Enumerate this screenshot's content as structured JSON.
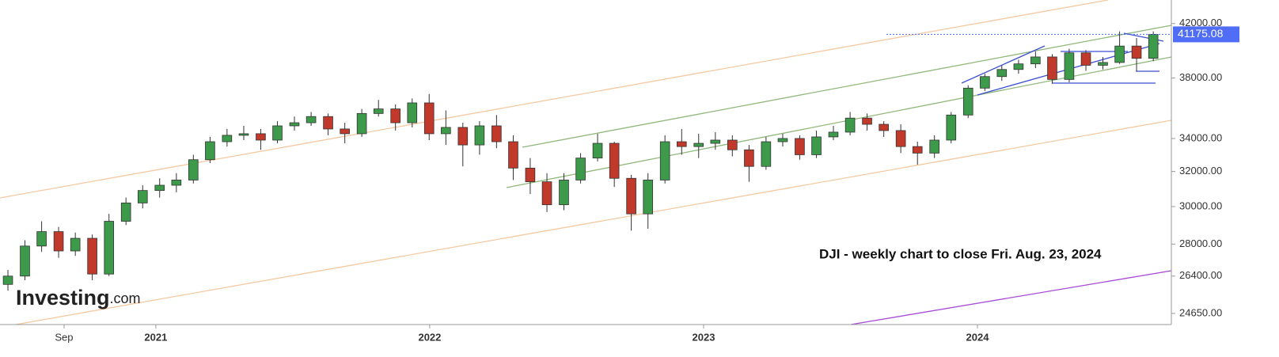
{
  "chart_data": {
    "type": "candlestick",
    "annotation": "DJI - weekly chart to close Fri. Aug. 23, 2024",
    "brand": "Investing",
    "brand_suffix": ".com",
    "log_scale": true,
    "up_color": "#3c9a4a",
    "down_color": "#c0392b",
    "last_color": "#4f6df5",
    "xlim": [
      2020.431,
      2024.708
    ],
    "xticks": [
      {
        "value": 2020.665,
        "label": "Sep"
      },
      {
        "value": 2021,
        "label": "2021"
      },
      {
        "value": 2022,
        "label": "2022"
      },
      {
        "value": 2023,
        "label": "2023"
      },
      {
        "value": 2024,
        "label": "2024"
      }
    ],
    "ylim": [
      24150,
      43860
    ],
    "yticks": [
      {
        "value": 24650,
        "label": "24650.00"
      },
      {
        "value": 26400,
        "label": "26400.00"
      },
      {
        "value": 28000,
        "label": "28000.00"
      },
      {
        "value": 30000,
        "label": "30000.00"
      },
      {
        "value": 32000,
        "label": "32000.00"
      },
      {
        "value": 34000,
        "label": "34000.00"
      },
      {
        "value": 38000,
        "label": "38000.00"
      },
      {
        "value": 42000,
        "label": "42000.00"
      }
    ],
    "x": [
      2020.46,
      2020.522,
      2020.583,
      2020.645,
      2020.706,
      2020.768,
      2020.829,
      2020.891,
      2020.952,
      2021.014,
      2021.075,
      2021.137,
      2021.198,
      2021.26,
      2021.321,
      2021.383,
      2021.444,
      2021.506,
      2021.567,
      2021.629,
      2021.69,
      2021.752,
      2021.813,
      2021.875,
      2021.936,
      2021.998,
      2022.059,
      2022.121,
      2022.182,
      2022.244,
      2022.305,
      2022.367,
      2022.428,
      2022.49,
      2022.551,
      2022.613,
      2022.674,
      2022.736,
      2022.797,
      2022.859,
      2022.92,
      2022.982,
      2023.043,
      2023.105,
      2023.166,
      2023.228,
      2023.289,
      2023.351,
      2023.412,
      2023.474,
      2023.535,
      2023.597,
      2023.658,
      2023.72,
      2023.781,
      2023.843,
      2023.904,
      2023.966,
      2024.027,
      2024.089,
      2024.15,
      2024.212,
      2024.273,
      2024.335,
      2024.396,
      2024.458,
      2024.519,
      2024.581,
      2024.642
    ],
    "open": [
      26000,
      26400,
      27900,
      28650,
      27650,
      28300,
      26500,
      29200,
      30200,
      30900,
      31200,
      31500,
      32700,
      33800,
      34200,
      34300,
      33900,
      34800,
      35000,
      35400,
      34600,
      34300,
      35600,
      35900,
      35000,
      36300,
      34300,
      34700,
      33600,
      34800,
      33800,
      32200,
      31400,
      30100,
      31500,
      32800,
      33700,
      31600,
      29600,
      31500,
      33800,
      33500,
      33700,
      33900,
      33300,
      32300,
      33800,
      34000,
      33000,
      34100,
      34400,
      35300,
      34900,
      34500,
      33500,
      33100,
      33900,
      35500,
      37300,
      38100,
      38600,
      39000,
      39500,
      37900,
      39800,
      38900,
      39100,
      40300,
      39400
    ],
    "high": [
      26700,
      28200,
      29200,
      28900,
      28600,
      28500,
      29600,
      30500,
      31200,
      31600,
      31900,
      33000,
      34100,
      34600,
      34800,
      34600,
      35100,
      35400,
      35700,
      35600,
      35000,
      35900,
      36500,
      36200,
      36600,
      36900,
      35800,
      35000,
      35100,
      35500,
      34200,
      32800,
      31900,
      31900,
      33100,
      34300,
      33800,
      31800,
      31900,
      34200,
      34600,
      34300,
      34400,
      34200,
      33600,
      34100,
      34300,
      34200,
      34500,
      34800,
      35700,
      35600,
      35100,
      34900,
      33800,
      34200,
      35700,
      37500,
      38300,
      38900,
      39300,
      39900,
      39700,
      40100,
      40000,
      39500,
      41400,
      40900,
      41400
    ],
    "low": [
      25700,
      26200,
      27600,
      27300,
      27400,
      26200,
      26400,
      29000,
      29900,
      30500,
      30800,
      31300,
      32500,
      33500,
      33900,
      33300,
      33700,
      34500,
      34800,
      34200,
      33700,
      34100,
      35400,
      34500,
      34700,
      33900,
      33600,
      32300,
      33000,
      33400,
      31500,
      30700,
      29700,
      29800,
      31300,
      32600,
      31100,
      28700,
      28800,
      31300,
      33000,
      32800,
      33300,
      32900,
      31400,
      32100,
      33500,
      32700,
      32800,
      33900,
      34200,
      34500,
      34100,
      33100,
      32400,
      32800,
      33700,
      35300,
      37100,
      37800,
      38300,
      38700,
      37600,
      37700,
      38500,
      38600,
      39000,
      38500,
      39200
    ],
    "close": [
      26400,
      27900,
      28650,
      27650,
      28300,
      26500,
      29200,
      30200,
      30900,
      31200,
      31500,
      32700,
      33800,
      34200,
      34300,
      33900,
      34800,
      35000,
      35400,
      34600,
      34300,
      35600,
      35900,
      35000,
      36300,
      34300,
      34700,
      33600,
      34800,
      33800,
      32200,
      31400,
      30100,
      31500,
      32800,
      33700,
      31600,
      29600,
      31500,
      33800,
      33500,
      33700,
      33900,
      33300,
      32300,
      33800,
      34000,
      33000,
      34100,
      34400,
      35300,
      34900,
      34500,
      33500,
      33100,
      33900,
      35500,
      37300,
      38100,
      38600,
      39000,
      39500,
      37900,
      39800,
      38900,
      39100,
      40300,
      39400,
      41175.08
    ]
  }
}
